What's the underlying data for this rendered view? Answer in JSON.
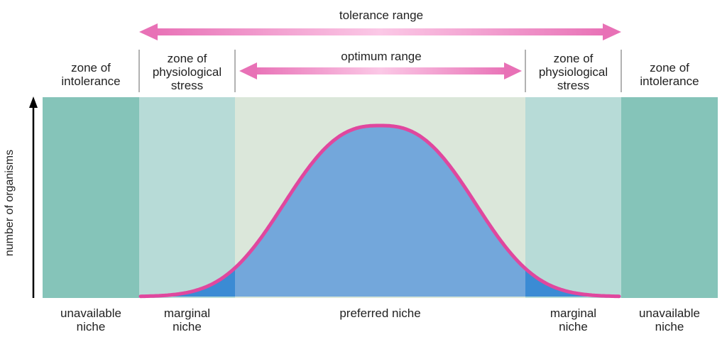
{
  "diagram": {
    "tolerance_label": "tolerance range",
    "optimum_label": "optimum range",
    "y_axis_label": "number of organisms",
    "zones": {
      "left_intolerance": [
        "zone of",
        "intolerance"
      ],
      "left_stress": [
        "zone of",
        "physiological",
        "stress"
      ],
      "right_stress": [
        "zone of",
        "physiological",
        "stress"
      ],
      "right_intolerance": [
        "zone of",
        "intolerance"
      ]
    },
    "niches": {
      "left_unavailable": [
        "unavailable",
        "niche"
      ],
      "left_marginal": [
        "marginal",
        "niche"
      ],
      "preferred": "preferred niche",
      "right_marginal": [
        "marginal",
        "niche"
      ],
      "right_unavailable": [
        "unavailable",
        "niche"
      ]
    },
    "colors": {
      "intolerance": "#85c4b9",
      "stress": "#b7dbd7",
      "optimum": "#dbe7da",
      "curve_fill": "#73a7db",
      "marginal_fill": "#3b8bd4",
      "curve_line": "#e0479e",
      "arrow": "#e871b6",
      "arrow_light": "#fbc8e6"
    }
  }
}
